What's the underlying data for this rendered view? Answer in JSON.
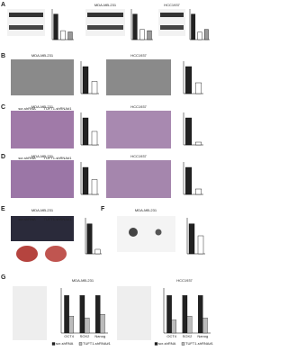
{
  "panel_labels": [
    "A",
    "B",
    "C",
    "D",
    "E",
    "F",
    "G"
  ],
  "cell_lines": [
    "MDA-MB-231",
    "HCC1937"
  ],
  "group_names": [
    "scr-shRNA",
    "TUFT1-shRNA#1"
  ],
  "bar_charts": [
    {
      "values": [
        1,
        0.35,
        0.3
      ]
    },
    {
      "values": [
        1,
        0.4,
        0.35
      ]
    },
    {
      "values": [
        1,
        0.3,
        0.4
      ]
    },
    {
      "values": [
        1,
        0.45
      ]
    },
    {
      "values": [
        1,
        0.4
      ]
    },
    {
      "values": [
        1,
        0.5
      ]
    },
    {
      "values": [
        1,
        0.1
      ]
    },
    {
      "values": [
        1,
        0.55
      ]
    },
    {
      "values": [
        1,
        0.2
      ]
    },
    {
      "values": [
        1,
        0.15
      ]
    },
    {
      "values": [
        1,
        0.6
      ]
    }
  ],
  "grouped_charts": [
    {
      "categories": [
        "OCT4",
        "SOX2",
        "Nanog"
      ],
      "series": [
        {
          "name": "scr-shRNA",
          "color": "#222222",
          "values": [
            1,
            1,
            1
          ]
        },
        {
          "name": "TUFT1-shRNA#1",
          "color": "#bbbbbb",
          "values": [
            0.45,
            0.4,
            0.5
          ]
        }
      ]
    },
    {
      "categories": [
        "OCT4",
        "SOX2",
        "Nanog"
      ],
      "series": [
        {
          "name": "scr-shRNA",
          "color": "#222222",
          "values": [
            1,
            1,
            1
          ]
        },
        {
          "name": "TUFT1-shRNA#1",
          "color": "#bbbbbb",
          "values": [
            0.35,
            0.45,
            0.4
          ]
        }
      ]
    }
  ]
}
